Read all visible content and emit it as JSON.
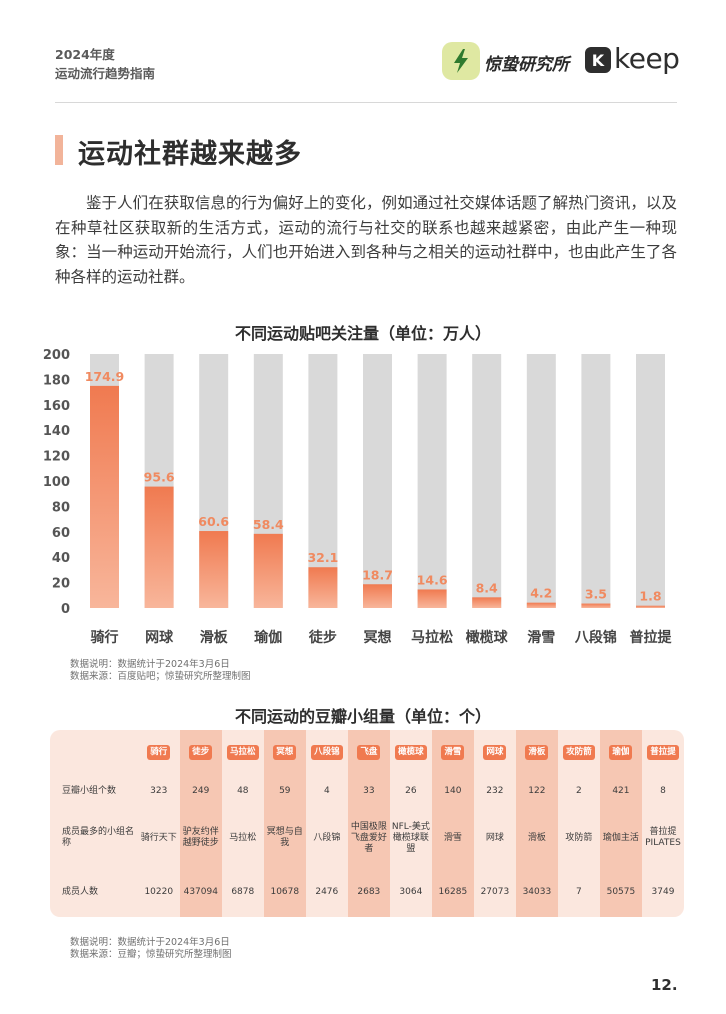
{
  "header": {
    "year_line": "2024年度",
    "subtitle_line": "运动流行趋势指南",
    "brand_name": "惊蛰研究所",
    "partner_logo_letter": "K",
    "partner_name": "keep",
    "brand_icon": "lightning-icon",
    "brand_color": "#dfe8a2"
  },
  "section": {
    "title": "运动社群越来越多",
    "paragraph": "鉴于人们在获取信息的行为偏好上的变化，例如通过社交媒体话题了解热门资讯，以及在种草社区获取新的生活方式，运动的流行与社交的联系也越来越紧密，由此产生一种现象：当一种运动开始流行，人们也开始进入到各种与之相关的运动社群中，也由此产生了各种各样的运动社群。"
  },
  "chart_data": {
    "type": "bar",
    "title": "不同运动贴吧关注量（单位：万人）",
    "categories": [
      "骑行",
      "网球",
      "滑板",
      "瑜伽",
      "徒步",
      "冥想",
      "马拉松",
      "橄榄球",
      "滑雪",
      "八段锦",
      "普拉提"
    ],
    "values": [
      174.9,
      95.6,
      60.6,
      58.4,
      32.1,
      18.7,
      14.6,
      8.4,
      4.2,
      3.5,
      1.8
    ],
    "value_labels": [
      "174.9",
      "95.6",
      "60.6",
      "58.4",
      "32.1",
      "18.7",
      "14.6",
      "8.4",
      "4.2",
      "3.5",
      "1.8"
    ],
    "ylim": [
      0,
      200
    ],
    "yticks": [
      0,
      20,
      40,
      60,
      80,
      100,
      120,
      140,
      160,
      180,
      200
    ],
    "ytick_labels": [
      "0",
      "20",
      "40",
      "60",
      "80",
      "100",
      "120",
      "140",
      "160",
      "180",
      "200"
    ],
    "xlabel": "",
    "ylabel": "",
    "bar_color": "#f07a50",
    "track_color": "#d9d9d9",
    "label_color": "#f08a60"
  },
  "chart1_notes": {
    "line1": "数据说明：数据统计于2024年3月6日",
    "line2": "数据来源：百度贴吧；惊蛰研究所整理制图"
  },
  "table": {
    "title": "不同运动的豆瓣小组量（单位：个）",
    "columns": [
      "骑行",
      "徒步",
      "马拉松",
      "冥想",
      "八段锦",
      "飞盘",
      "橄榄球",
      "滑雪",
      "网球",
      "滑板",
      "攻防箭",
      "瑜伽",
      "普拉提"
    ],
    "row_labels": [
      "豆瓣小组个数",
      "成员最多的小组名称",
      "成员人数"
    ],
    "group_counts": [
      "323",
      "249",
      "48",
      "59",
      "4",
      "33",
      "26",
      "140",
      "232",
      "122",
      "2",
      "421",
      "8"
    ],
    "top_group_names": [
      "骑行天下",
      "驴友约伴越野徒步",
      "马拉松",
      "冥想与自我",
      "八段锦",
      "中国极限飞盘爱好者",
      "NFL-美式橄榄球联盟",
      "滑雪",
      "网球",
      "滑板",
      "攻防箭",
      "瑜伽主活",
      "普拉提PILATES"
    ],
    "member_counts": [
      "10220",
      "437094",
      "6878",
      "10678",
      "2476",
      "2683",
      "3064",
      "16285",
      "27073",
      "34033",
      "7",
      "50575",
      "3749"
    ],
    "header_color": "#f07a50",
    "band_color": "#f6c7b3"
  },
  "table_notes": {
    "line1": "数据说明：数据统计于2024年3月6日",
    "line2": "数据来源：豆瓣；惊蛰研究所整理制图"
  },
  "page_number": "12."
}
